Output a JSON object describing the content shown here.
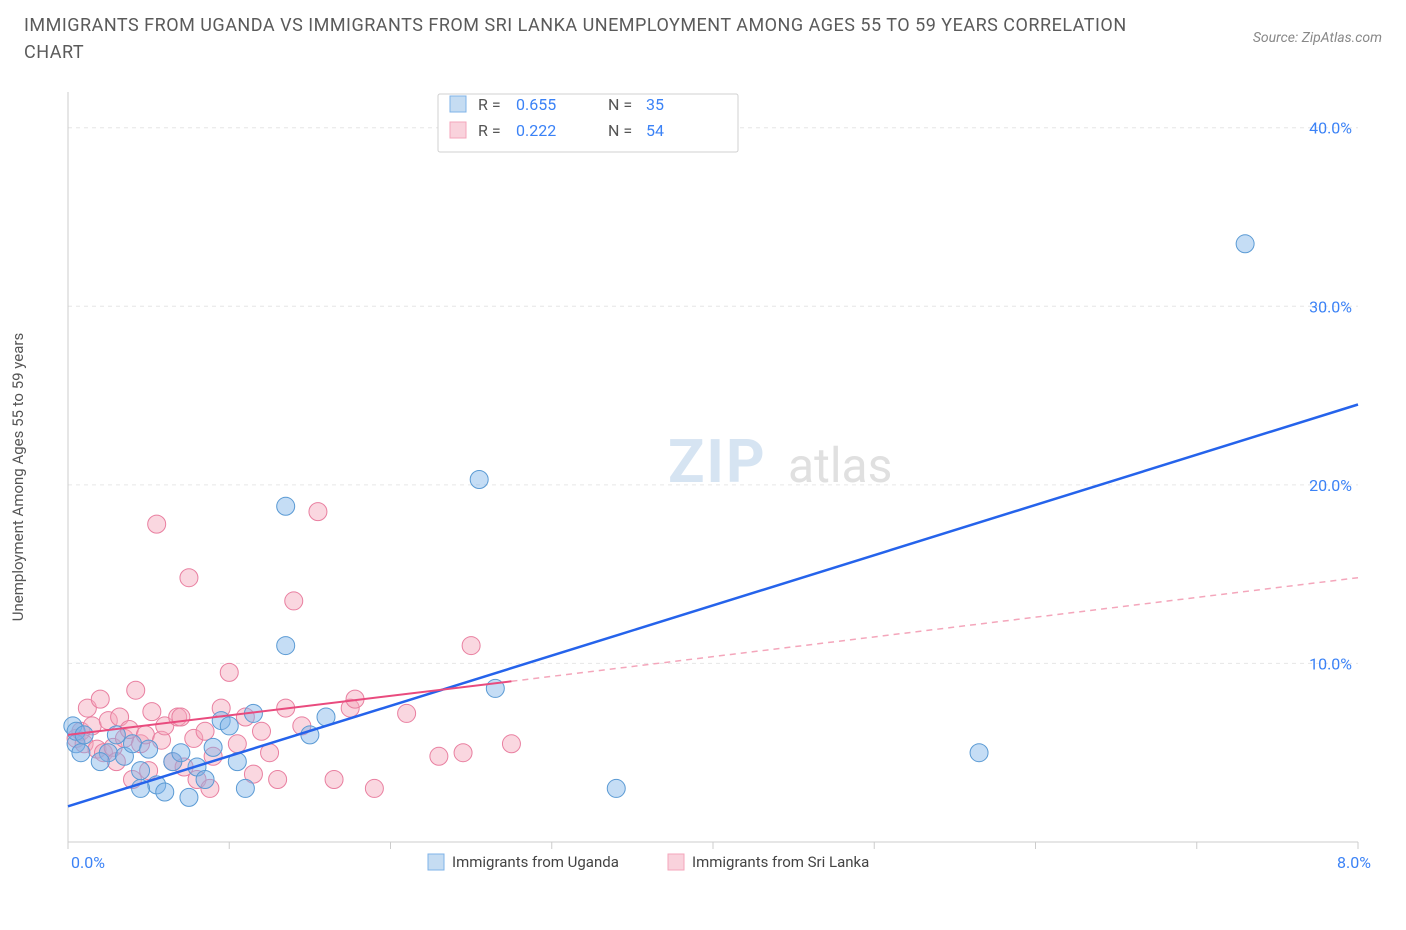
{
  "title": "IMMIGRANTS FROM UGANDA VS IMMIGRANTS FROM SRI LANKA UNEMPLOYMENT AMONG AGES 55 TO 59 YEARS CORRELATION CHART",
  "source": "Source: ZipAtlas.com",
  "y_axis_label": "Unemployment Among Ages 55 to 59 years",
  "watermark_a": "ZIP",
  "watermark_b": "atlas",
  "chart": {
    "type": "scatter",
    "background_color": "#ffffff",
    "grid_color": "#e6e6e6",
    "axis_color": "#cccccc",
    "xlim": [
      0,
      8.0
    ],
    "ylim": [
      0,
      42
    ],
    "xticks": [
      0.0,
      1.0,
      2.0,
      3.0,
      4.0,
      5.0,
      6.0,
      7.0,
      8.0
    ],
    "xtick_labels": [
      "0.0%",
      "",
      "",
      "",
      "",
      "",
      "",
      "",
      "8.0%"
    ],
    "yticks": [
      10.0,
      20.0,
      30.0,
      40.0
    ],
    "ytick_labels": [
      "10.0%",
      "20.0%",
      "30.0%",
      "40.0%"
    ],
    "marker_radius": 9,
    "series_blue": {
      "color_fill": "#7fb3e8",
      "color_stroke": "#5a9ad4",
      "fill_opacity": 0.45,
      "label": "Immigrants from Uganda",
      "points": [
        [
          0.03,
          6.5
        ],
        [
          0.05,
          5.5
        ],
        [
          0.08,
          5.0
        ],
        [
          0.05,
          6.2
        ],
        [
          0.1,
          6.0
        ],
        [
          0.25,
          5.0
        ],
        [
          0.3,
          6.0
        ],
        [
          0.35,
          4.8
        ],
        [
          0.45,
          4.0
        ],
        [
          0.4,
          5.5
        ],
        [
          0.5,
          5.2
        ],
        [
          0.55,
          3.2
        ],
        [
          0.6,
          2.8
        ],
        [
          0.65,
          4.5
        ],
        [
          0.7,
          5.0
        ],
        [
          0.75,
          2.5
        ],
        [
          0.45,
          3.0
        ],
        [
          0.8,
          4.2
        ],
        [
          0.85,
          3.5
        ],
        [
          0.9,
          5.3
        ],
        [
          0.95,
          6.8
        ],
        [
          1.0,
          6.5
        ],
        [
          1.05,
          4.5
        ],
        [
          1.1,
          3.0
        ],
        [
          1.15,
          7.2
        ],
        [
          1.35,
          18.8
        ],
        [
          1.35,
          11.0
        ],
        [
          1.5,
          6.0
        ],
        [
          1.6,
          7.0
        ],
        [
          2.55,
          20.3
        ],
        [
          2.65,
          8.6
        ],
        [
          3.4,
          3.0
        ],
        [
          5.65,
          5.0
        ],
        [
          7.3,
          33.5
        ],
        [
          0.2,
          4.5
        ]
      ],
      "trend": {
        "x1": 0.0,
        "y1": 2.0,
        "x2": 8.0,
        "y2": 24.5,
        "color": "#2563eb",
        "width": 2.5
      }
    },
    "series_pink": {
      "color_fill": "#f4a6bb",
      "color_stroke": "#e97fa0",
      "fill_opacity": 0.45,
      "label": "Immigrants from Sri Lanka",
      "points": [
        [
          0.05,
          5.8
        ],
        [
          0.08,
          6.2
        ],
        [
          0.1,
          5.5
        ],
        [
          0.12,
          7.5
        ],
        [
          0.15,
          6.5
        ],
        [
          0.18,
          5.2
        ],
        [
          0.2,
          8.0
        ],
        [
          0.22,
          5.0
        ],
        [
          0.25,
          6.8
        ],
        [
          0.28,
          5.3
        ],
        [
          0.3,
          4.5
        ],
        [
          0.32,
          7.0
        ],
        [
          0.35,
          5.8
        ],
        [
          0.38,
          6.3
        ],
        [
          0.4,
          3.5
        ],
        [
          0.42,
          8.5
        ],
        [
          0.45,
          5.5
        ],
        [
          0.48,
          6.0
        ],
        [
          0.5,
          4.0
        ],
        [
          0.52,
          7.3
        ],
        [
          0.55,
          17.8
        ],
        [
          0.58,
          5.7
        ],
        [
          0.6,
          6.5
        ],
        [
          0.65,
          4.5
        ],
        [
          0.68,
          7.0
        ],
        [
          0.7,
          7.0
        ],
        [
          0.72,
          4.2
        ],
        [
          0.75,
          14.8
        ],
        [
          0.78,
          5.8
        ],
        [
          0.8,
          3.5
        ],
        [
          0.85,
          6.2
        ],
        [
          0.88,
          3.0
        ],
        [
          0.9,
          4.8
        ],
        [
          0.95,
          7.5
        ],
        [
          1.0,
          9.5
        ],
        [
          1.05,
          5.5
        ],
        [
          1.1,
          7.0
        ],
        [
          1.15,
          3.8
        ],
        [
          1.2,
          6.2
        ],
        [
          1.25,
          5.0
        ],
        [
          1.3,
          3.5
        ],
        [
          1.35,
          7.5
        ],
        [
          1.4,
          13.5
        ],
        [
          1.45,
          6.5
        ],
        [
          1.55,
          18.5
        ],
        [
          1.65,
          3.5
        ],
        [
          1.75,
          7.5
        ],
        [
          1.78,
          8.0
        ],
        [
          1.9,
          3.0
        ],
        [
          2.1,
          7.2
        ],
        [
          2.3,
          4.8
        ],
        [
          2.45,
          5.0
        ],
        [
          2.5,
          11.0
        ],
        [
          2.75,
          5.5
        ]
      ],
      "trend_solid": {
        "x1": 0.0,
        "y1": 6.0,
        "x2": 2.75,
        "y2": 9.0,
        "color": "#e94b7e",
        "width": 2
      },
      "trend_dash": {
        "x1": 2.75,
        "y1": 9.0,
        "x2": 8.0,
        "y2": 14.8,
        "color": "#f4a6bb",
        "width": 1.5
      }
    }
  },
  "stats_box": {
    "rows": [
      {
        "swatch": "blue",
        "r_label": "R =",
        "r_val": "0.655",
        "n_label": "N =",
        "n_val": "35"
      },
      {
        "swatch": "pink",
        "r_label": "R =",
        "r_val": "0.222",
        "n_label": "N =",
        "n_val": "54"
      }
    ]
  },
  "legend": {
    "items": [
      {
        "swatch": "blue",
        "label": "Immigrants from Uganda"
      },
      {
        "swatch": "pink",
        "label": "Immigrants from Sri Lanka"
      }
    ]
  }
}
